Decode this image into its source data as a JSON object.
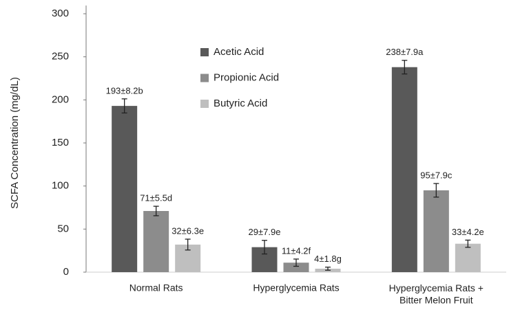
{
  "chart_data": {
    "type": "bar",
    "y_label": "SCFA Concentration (mg/dL)",
    "categories": [
      "Normal Rats",
      "Hyperglycemia Rats",
      "Hyperglycemia Rats +\nBitter Melon Fruit"
    ],
    "series": [
      {
        "name": "Acetic Acid",
        "color": "#595959",
        "values": [
          193,
          29,
          238
        ],
        "errors": [
          8.2,
          7.9,
          7.9
        ],
        "value_labels": [
          "193±8.2b",
          "29±7.9e",
          "238±7.9a"
        ]
      },
      {
        "name": "Propionic Acid",
        "color": "#8c8c8c",
        "values": [
          71,
          11,
          95
        ],
        "errors": [
          5.5,
          4.2,
          7.9
        ],
        "value_labels": [
          "71±5.5d",
          "11±4.2f",
          "95±7.9c"
        ]
      },
      {
        "name": "Butyric Acid",
        "color": "#bfbfbf",
        "values": [
          32,
          4,
          33
        ],
        "errors": [
          6.3,
          1.8,
          4.2
        ],
        "value_labels": [
          "32±6.3e",
          "4±1.8g",
          "33±4.2e"
        ]
      }
    ],
    "ylim": [
      0,
      300
    ],
    "yticks": [
      0,
      50,
      100,
      150,
      200,
      250,
      300
    ],
    "legend": "upper center",
    "grid": false
  }
}
